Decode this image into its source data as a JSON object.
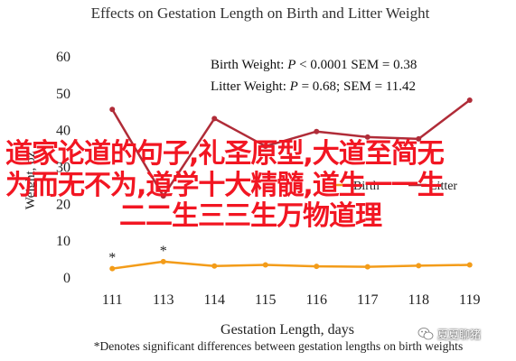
{
  "chart_data": {
    "type": "line",
    "title": "Effects on Gestation Length on Birth and Litter Weight",
    "xlabel": "Gestation Length, days",
    "ylabel": "Weight, oz",
    "categories": [
      "111",
      "113",
      "114",
      "115",
      "116",
      "117",
      "118",
      "119"
    ],
    "ylim": [
      0,
      60
    ],
    "yticks": [
      "0",
      "10",
      "20",
      "30",
      "40",
      "50",
      "60"
    ],
    "grid": false,
    "series": [
      {
        "name": "Birth",
        "color": "#f39c19",
        "values": [
          2.3,
          4.2,
          3.0,
          3.3,
          2.9,
          2.8,
          3.1,
          3.3
        ]
      },
      {
        "name": "Litter",
        "color": "#b02c38",
        "values": [
          45.5,
          22.0,
          43.0,
          35.5,
          39.5,
          38.0,
          37.5,
          48.0
        ]
      }
    ],
    "stats": [
      {
        "label": "Birth Weight: ",
        "p": "P",
        "rest": " < 0.0001 SEM = 0.38"
      },
      {
        "label": "Litter Weight: ",
        "p": "P",
        "rest": " = 0.68; SEM = 11.42"
      }
    ],
    "significance_markers": [
      {
        "category": "111",
        "symbol": "*"
      },
      {
        "category": "113",
        "symbol": "*"
      }
    ],
    "footnote": "*Denotes significant differences between gestation lengths on birth weights",
    "legend_position": "center-right"
  },
  "overlay_text": {
    "line1": "道家论道的句子,礼圣原型,大道至简无",
    "line2": "为而无不为,道学十大精髓,道生一一生",
    "line3": "二二生三三生万物道理"
  },
  "watermark": {
    "label": "夏夏聊猪",
    "icon": "wechat-icon"
  }
}
